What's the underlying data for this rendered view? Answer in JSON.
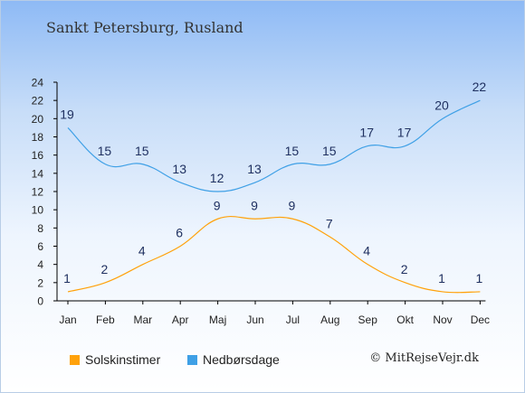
{
  "page": {
    "title": "Sankt Petersburg, Rusland",
    "credit": "© MitRejseVejr.dk"
  },
  "colors": {
    "sun": "#ffa20b",
    "rain": "#3fa0e6"
  },
  "chart_data": {
    "type": "line",
    "title": "",
    "xlabel": "",
    "ylabel": "",
    "categories": [
      "Jan",
      "Feb",
      "Mar",
      "Apr",
      "Maj",
      "Jun",
      "Jul",
      "Aug",
      "Sep",
      "Okt",
      "Nov",
      "Dec"
    ],
    "ylim": [
      0,
      24
    ],
    "yticks": [
      0,
      2,
      4,
      6,
      8,
      10,
      12,
      14,
      16,
      18,
      20,
      22,
      24
    ],
    "grid": false,
    "legend_position": "bottom",
    "series": [
      {
        "name": "Solskinstimer",
        "color": "#ffa20b",
        "values": [
          1,
          2,
          4,
          6,
          9,
          9,
          9,
          7,
          4,
          2,
          1,
          1
        ]
      },
      {
        "name": "Nedbørsdage",
        "color": "#3fa0e6",
        "values": [
          19,
          15,
          15,
          13,
          12,
          13,
          15,
          15,
          17,
          17,
          20,
          22
        ]
      }
    ]
  }
}
